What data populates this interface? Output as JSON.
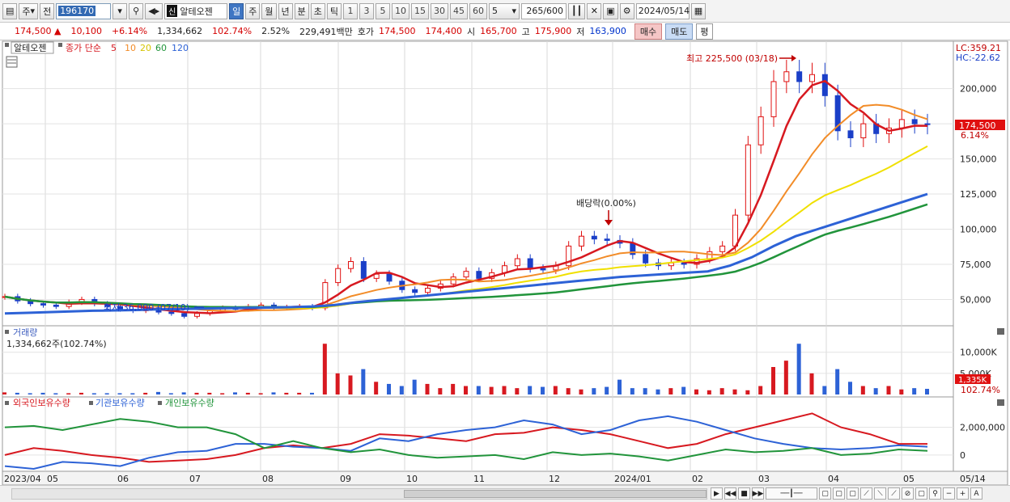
{
  "toolbar": {
    "period_label": "주",
    "prev_label": "전",
    "stock_code": "196170",
    "stock_name": "알테오젠",
    "credit_badge": "신",
    "periods": [
      "일",
      "주",
      "월",
      "년",
      "분",
      "초",
      "틱"
    ],
    "active_period": "일",
    "intervals": [
      "1",
      "3",
      "5",
      "10",
      "15",
      "30",
      "45",
      "60"
    ],
    "interval_select": "5",
    "count": "265",
    "count_max": "/600",
    "date": "2024/05/14"
  },
  "price_strip": {
    "price": "174,500",
    "up_arrow": "▲",
    "change": "10,100",
    "change_pct": "+6.14%",
    "volume": "1,334,662",
    "vol_ratio": "102.74%",
    "turnover_pct": "2.52%",
    "amount": "229,491백만",
    "quote_label": "호가",
    "ask": "174,500",
    "bid": "174,400",
    "open_label": "시",
    "open": "165,700",
    "high_label": "고",
    "high": "175,900",
    "low_label": "저",
    "low": "163,900",
    "buy_label": "매수",
    "sell_label": "매도",
    "eval_label": "평"
  },
  "chart_data": [
    {
      "type": "candlestick",
      "legend": {
        "stock": "알테오젠",
        "indicator": "종가 단순",
        "periods": [
          "5",
          "10",
          "20",
          "60",
          "120"
        ],
        "colors": [
          "#d71920",
          "#f28c28",
          "#e8e800",
          "#21943b",
          "#2d62d6"
        ]
      },
      "y_ticks": [
        50000,
        75000,
        100000,
        125000,
        150000,
        175000,
        200000
      ],
      "y_tick_labels": [
        "50,000",
        "75,000",
        "100,000",
        "125,000",
        "150,000",
        "175,000",
        "200,000"
      ],
      "ylim": [
        33000,
        232000
      ],
      "right_labels": {
        "lc": "LC:359.21",
        "hc": "HC:-22.62",
        "price_box": "174,500",
        "pct": "6.14%"
      },
      "annotations": {
        "high": "최고 225,500 (03/18)",
        "low": "최저 36,000 (07/10)",
        "dividend": "배당락(0.00%)"
      },
      "close_series": [
        52000,
        49000,
        47000,
        46000,
        45000,
        48000,
        50000,
        47000,
        45000,
        43000,
        42000,
        44000,
        41000,
        40000,
        38000,
        40000,
        42000,
        44000,
        43000,
        45000,
        46000,
        44000,
        44500,
        45000,
        44000,
        62000,
        72000,
        77000,
        65000,
        68000,
        63000,
        57000,
        55000,
        58000,
        61000,
        66000,
        70000,
        65000,
        69000,
        74000,
        79000,
        72000,
        71000,
        74000,
        88000,
        95000,
        93000,
        92000,
        90000,
        82000,
        76000,
        74000,
        76000,
        75000,
        79000,
        84000,
        88000,
        110000,
        160000,
        180000,
        205000,
        212000,
        205000,
        210000,
        195000,
        170000,
        165000,
        175000,
        168000,
        172000,
        178000,
        175000,
        174500
      ],
      "ma120_series": [
        40000,
        40500,
        41000,
        41500,
        42000,
        42200,
        42500,
        43000,
        43200,
        43500,
        43800,
        44000,
        44200,
        44500,
        45000,
        46000,
        48000,
        49500,
        51000,
        52500,
        54000,
        55500,
        57000,
        58500,
        60000,
        61500,
        63000,
        64500,
        66000,
        67000,
        68000,
        69000,
        70000,
        74000,
        80000,
        88000,
        95000,
        100000,
        105000,
        110000,
        115000,
        120000,
        125000
      ]
    },
    {
      "type": "bar",
      "title": "거래량",
      "value_label": "1,334,662주(102.74%)",
      "y_ticks": [
        5000,
        10000
      ],
      "y_tick_labels": [
        "5,000K",
        "10,000K"
      ],
      "last_box": "1,335K",
      "last_pct": "102.74%",
      "values_k": [
        500,
        400,
        300,
        400,
        300,
        300,
        400,
        300,
        300,
        300,
        300,
        400,
        600,
        300,
        500,
        400,
        400,
        300,
        500,
        400,
        300,
        500,
        400,
        400,
        400,
        12000,
        5000,
        4500,
        6000,
        3000,
        2500,
        2000,
        3500,
        2500,
        1500,
        2500,
        2000,
        2000,
        1800,
        2000,
        1500,
        2000,
        1800,
        2000,
        1500,
        1200,
        1500,
        1800,
        3500,
        1500,
        1500,
        1200,
        1500,
        1800,
        1200,
        1000,
        1500,
        1200,
        1000,
        2000,
        6500,
        8000,
        12000,
        5000,
        2000,
        6000,
        3000,
        2000,
        1500,
        2000,
        1200,
        1500,
        1335
      ]
    },
    {
      "type": "line",
      "title": "외국인보유수량",
      "series_names": [
        "외국인보유수량",
        "기관보유수량",
        "개인보유수량"
      ],
      "series_colors": [
        "#d71920",
        "#2d62d6",
        "#21943b"
      ],
      "y_ticks": [
        0,
        2000000
      ],
      "y_tick_labels": [
        "0",
        "2,000,000"
      ],
      "foreign": [
        0,
        500000,
        300000,
        0,
        -200000,
        -500000,
        -400000,
        -300000,
        0,
        500000,
        700000,
        500000,
        800000,
        1500000,
        1400000,
        1200000,
        1000000,
        1500000,
        1600000,
        2000000,
        1800000,
        1500000,
        1000000,
        500000,
        800000,
        1500000,
        2000000,
        2500000,
        3000000,
        2000000,
        1500000,
        800000,
        800000
      ],
      "institution": [
        -800000,
        -1000000,
        -500000,
        -600000,
        -800000,
        -200000,
        200000,
        300000,
        800000,
        800000,
        600000,
        500000,
        300000,
        1200000,
        1000000,
        1500000,
        1800000,
        2000000,
        2500000,
        2200000,
        1500000,
        1800000,
        2500000,
        2800000,
        2400000,
        1800000,
        1200000,
        800000,
        500000,
        400000,
        500000,
        700000,
        600000
      ],
      "individual": [
        2000000,
        2100000,
        1800000,
        2200000,
        2600000,
        2400000,
        2000000,
        2000000,
        1500000,
        500000,
        1000000,
        500000,
        200000,
        400000,
        0,
        -200000,
        -100000,
        0,
        -300000,
        200000,
        0,
        100000,
        -100000,
        -400000,
        0,
        400000,
        200000,
        300000,
        500000,
        0,
        100000,
        400000,
        300000
      ]
    }
  ],
  "x_axis": {
    "labels": [
      "2023/04",
      "05",
      "06",
      "07",
      "08",
      "09",
      "10",
      "11",
      "12",
      "2024/01",
      "02",
      "03",
      "04",
      "05",
      "05/14"
    ]
  }
}
